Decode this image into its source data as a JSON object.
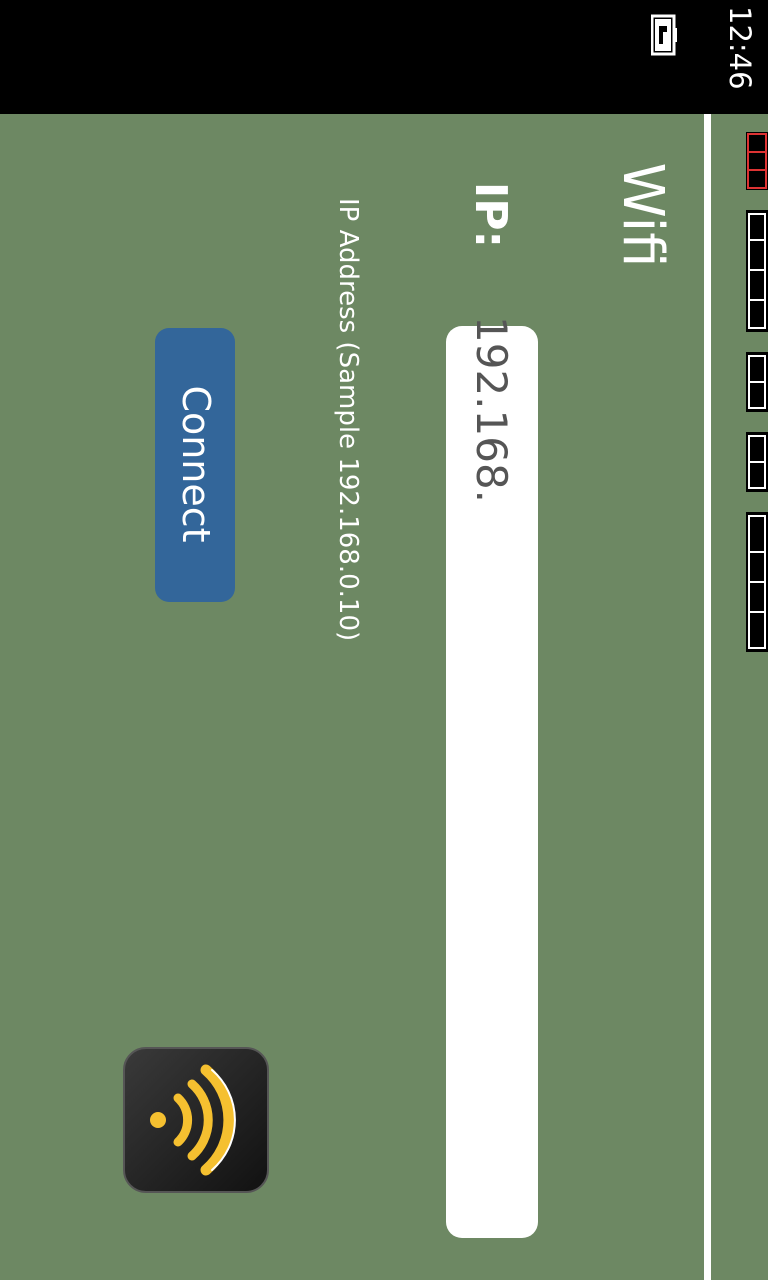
{
  "status_bar": {
    "time": "12:46",
    "battery_icon": "battery-charging-icon"
  },
  "app": {
    "title": "Wifi"
  },
  "form": {
    "ip_label": "IP:",
    "ip_value": "192.168.",
    "hint": "IP Address  (Sample 192.168.0.10)",
    "connect_label": "Connect"
  },
  "icons": {
    "wifi": "wifi-icon"
  },
  "colors": {
    "background": "#6d8863",
    "button": "#33669a",
    "wifi_accent": "#f5c030"
  }
}
